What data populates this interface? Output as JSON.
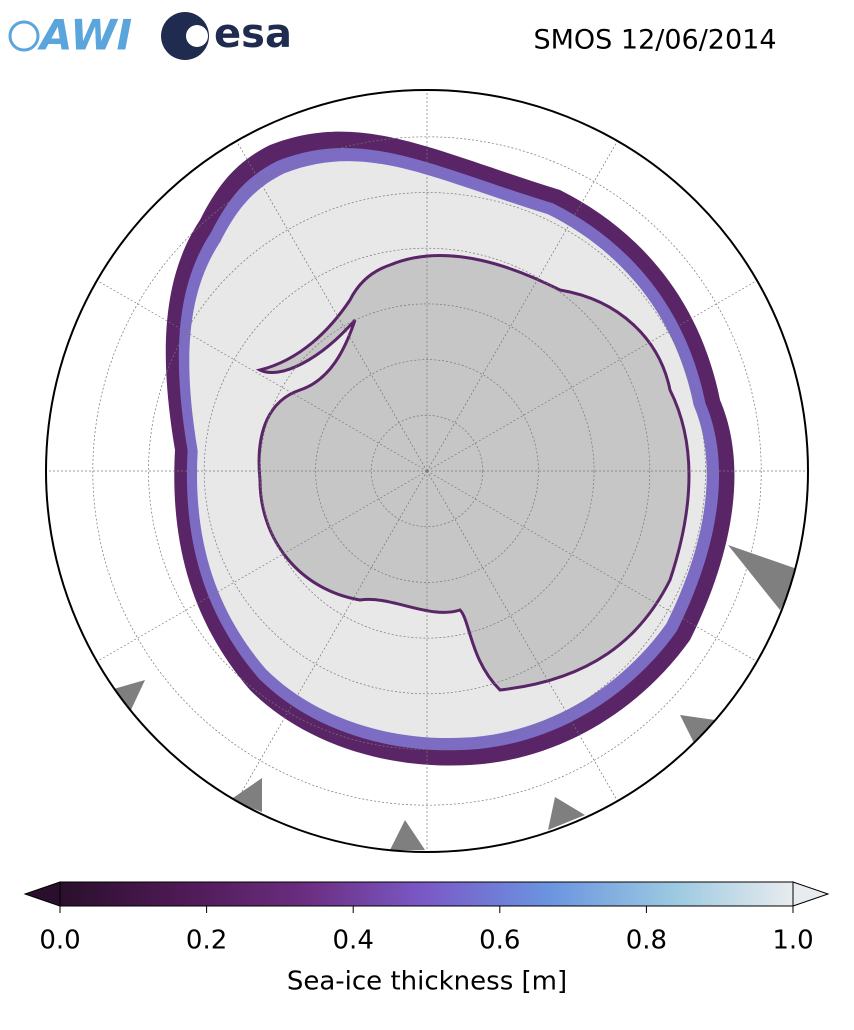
{
  "header": {
    "logos": [
      "AWI",
      "esa"
    ],
    "title": "SMOS 12/06/2014"
  },
  "colorbar": {
    "label": "Sea-ice thickness [m]",
    "lim": [
      0,
      1
    ],
    "ticks": [
      {
        "value": 0,
        "label": "0.0"
      },
      0.2,
      0.4,
      0.6,
      0.8,
      {
        "value": 1,
        "label": "1.0"
      }
    ],
    "colors": [
      "#2a0f2c",
      "#4e1a55",
      "#6b2d80",
      "#7a5ac8",
      "#6a94e0",
      "#9ac8e0",
      "#e8ecee"
    ]
  }
}
